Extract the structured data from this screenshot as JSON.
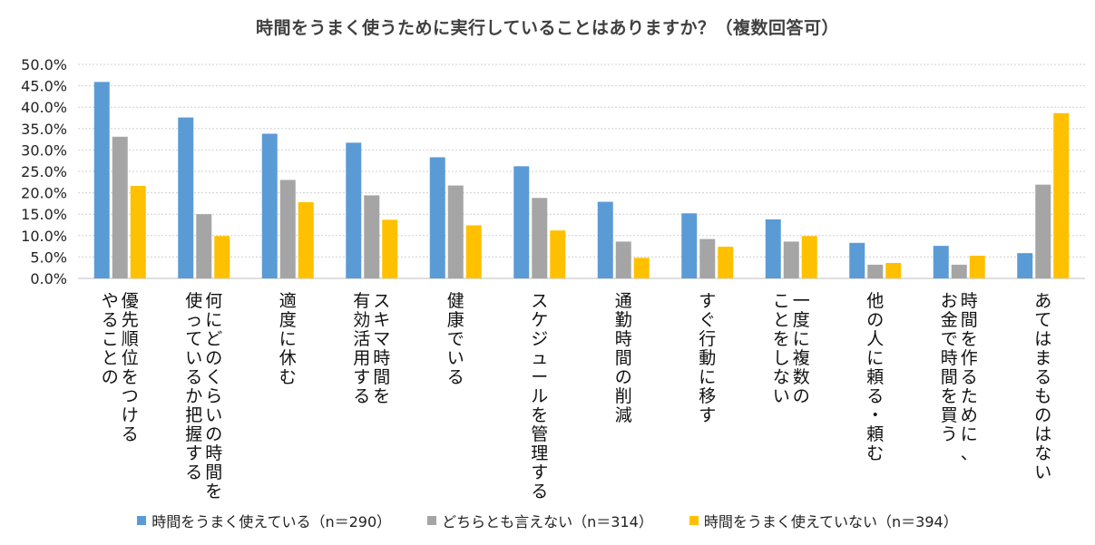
{
  "chart_data": {
    "type": "bar",
    "title": "時間をうまく使うために実行していることはありますか？（複数回答可）",
    "ylim": [
      0,
      50
    ],
    "yticks": [
      "0.0%",
      "5.0%",
      "10.0%",
      "15.0%",
      "20.0%",
      "25.0%",
      "30.0%",
      "35.0%",
      "40.0%",
      "45.0%",
      "50.0%"
    ],
    "grid": true,
    "legend_position": "bottom",
    "categories": [
      [
        "優先順位をつける",
        "やることの"
      ],
      [
        "何にどのくらいの時間を",
        "使っているか把握する"
      ],
      [
        "適度に休む"
      ],
      [
        "スキマ時間を",
        "有効活用する"
      ],
      [
        "健康でいる"
      ],
      [
        "スケジュールを管理する"
      ],
      [
        "通勤時間の削減"
      ],
      [
        "すぐ行動に移す"
      ],
      [
        "一度に複数の",
        "ことをしない"
      ],
      [
        "他の人に頼る・頼む"
      ],
      [
        "時間を作るために、",
        "お金で時間を買う"
      ],
      [
        "あてはまるものはない"
      ]
    ],
    "series": [
      {
        "name": "時間をうまく使えている（n＝290）",
        "color": "#5B9BD5",
        "values": [
          45.9,
          37.6,
          33.8,
          31.7,
          28.3,
          26.2,
          17.9,
          15.2,
          13.8,
          8.3,
          7.6,
          5.9
        ]
      },
      {
        "name": "どちらとも言えない（n＝314）",
        "color": "#A5A5A5",
        "values": [
          33.1,
          15.0,
          23.0,
          19.4,
          21.7,
          18.8,
          8.6,
          9.2,
          8.6,
          3.2,
          3.2,
          21.9
        ]
      },
      {
        "name": "時間をうまく使えていない（n＝394）",
        "color": "#FFC000",
        "values": [
          21.6,
          9.9,
          17.8,
          13.7,
          12.4,
          11.2,
          4.8,
          7.4,
          9.9,
          3.6,
          5.3,
          38.6
        ]
      }
    ]
  }
}
